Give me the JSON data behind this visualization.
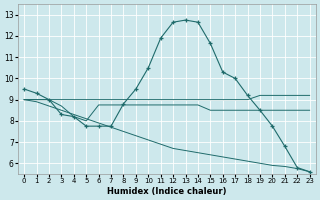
{
  "xlabel": "Humidex (Indice chaleur)",
  "xlim": [
    -0.5,
    23.5
  ],
  "ylim": [
    5.5,
    13.5
  ],
  "yticks": [
    6,
    7,
    8,
    9,
    10,
    11,
    12,
    13
  ],
  "xticks": [
    0,
    1,
    2,
    3,
    4,
    5,
    6,
    7,
    8,
    9,
    10,
    11,
    12,
    13,
    14,
    15,
    16,
    17,
    18,
    19,
    20,
    21,
    22,
    23
  ],
  "bg_color": "#cde8ec",
  "line_color": "#1f6b6b",
  "grid_color": "#ffffff",
  "line1_x": [
    0,
    1,
    2,
    3,
    4,
    5,
    6,
    7,
    8,
    9,
    10,
    11,
    12,
    13,
    14,
    15,
    16,
    17,
    18,
    19,
    20,
    21,
    22,
    23
  ],
  "line1_y": [
    9.5,
    9.3,
    9.0,
    8.3,
    8.2,
    7.75,
    7.75,
    7.75,
    8.8,
    9.5,
    10.5,
    11.9,
    12.65,
    12.75,
    12.65,
    11.65,
    10.3,
    10.0,
    9.2,
    8.5,
    7.75,
    6.8,
    5.8,
    5.6
  ],
  "line2_x": [
    0,
    1,
    2,
    3,
    4,
    5,
    6,
    7,
    8,
    9,
    10,
    11,
    12,
    13,
    14,
    15,
    16,
    17,
    18,
    19,
    20,
    21,
    22,
    23
  ],
  "line2_y": [
    9.0,
    9.0,
    9.0,
    9.0,
    9.0,
    9.0,
    9.0,
    9.0,
    9.0,
    9.0,
    9.0,
    9.0,
    9.0,
    9.0,
    9.0,
    9.0,
    9.0,
    9.0,
    9.0,
    9.2,
    9.2,
    9.2,
    9.2,
    9.2
  ],
  "line3_x": [
    0,
    1,
    2,
    3,
    4,
    5,
    6,
    7,
    8,
    9,
    10,
    11,
    12,
    13,
    14,
    15,
    16,
    17,
    18,
    19,
    20,
    21,
    22,
    23
  ],
  "line3_y": [
    9.0,
    9.0,
    9.0,
    8.7,
    8.2,
    8.0,
    8.75,
    8.75,
    8.75,
    8.75,
    8.75,
    8.75,
    8.75,
    8.75,
    8.75,
    8.5,
    8.5,
    8.5,
    8.5,
    8.5,
    8.5,
    8.5,
    8.5,
    8.5
  ],
  "line4_x": [
    0,
    1,
    2,
    3,
    4,
    5,
    6,
    7,
    8,
    9,
    10,
    11,
    12,
    13,
    14,
    15,
    16,
    17,
    18,
    19,
    20,
    21,
    22,
    23
  ],
  "line4_y": [
    9.0,
    8.9,
    8.7,
    8.5,
    8.3,
    8.1,
    7.9,
    7.7,
    7.5,
    7.3,
    7.1,
    6.9,
    6.7,
    6.6,
    6.5,
    6.4,
    6.3,
    6.2,
    6.1,
    6.0,
    5.9,
    5.85,
    5.75,
    5.6
  ]
}
